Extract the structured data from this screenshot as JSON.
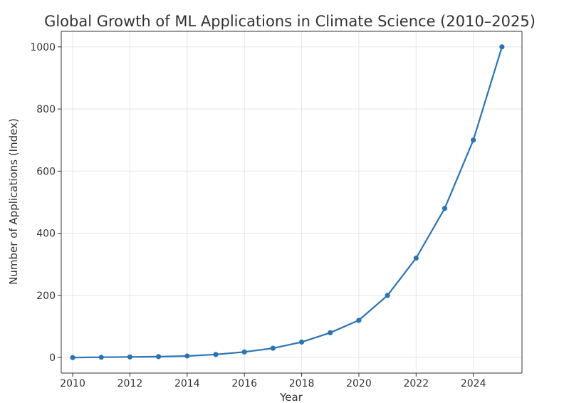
{
  "chart_data": {
    "type": "line",
    "title": "Global Growth of ML Applications in Climate Science (2010–2025)",
    "xlabel": "Year",
    "ylabel": "Number of Applications (Index)",
    "xlim": [
      2009.6,
      2025.7
    ],
    "ylim": [
      -50,
      1050
    ],
    "x_ticks": [
      2010,
      2012,
      2014,
      2016,
      2018,
      2020,
      2022,
      2024
    ],
    "x_tick_labels": [
      "2010",
      "2012",
      "2014",
      "2016",
      "2018",
      "2020",
      "2022",
      "2024"
    ],
    "y_ticks": [
      0,
      200,
      400,
      600,
      800,
      1000
    ],
    "y_tick_labels": [
      "0",
      "200",
      "400",
      "600",
      "800",
      "1000"
    ],
    "grid": true,
    "series": [
      {
        "color": "#2c73b4",
        "x": [
          2010,
          2011,
          2012,
          2013,
          2014,
          2015,
          2016,
          2017,
          2018,
          2019,
          2020,
          2021,
          2022,
          2023,
          2024,
          2025
        ],
        "y": [
          0,
          1,
          2,
          3,
          5,
          10,
          18,
          30,
          50,
          80,
          120,
          200,
          320,
          480,
          700,
          1000
        ]
      }
    ]
  }
}
